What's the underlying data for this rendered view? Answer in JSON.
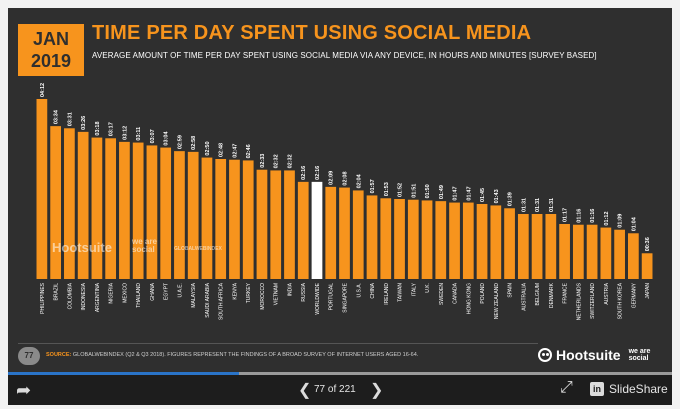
{
  "slide": {
    "badge_month": "JAN",
    "badge_year": "2019",
    "title": "TIME PER DAY SPENT USING SOCIAL MEDIA",
    "subtitle": "AVERAGE AMOUNT OF TIME PER DAY SPENT USING SOCIAL MEDIA VIA ANY DEVICE, IN HOURS AND MINUTES [SURVEY BASED]",
    "page_number": "77",
    "source_label": "SOURCE:",
    "source_text": "GLOBALWEBINDEX (Q2 & Q3 2018). FIGURES REPRESENT THE FINDINGS OF A BROAD SURVEY OF INTERNET USERS AGED 16-64.",
    "brand_hootsuite": "Hootsuite",
    "brand_wearesocial": "we are social",
    "watermark_hootsuite": "Hootsuite",
    "watermark_wearesocial": "we are social",
    "watermark_gwi": "GLOBALWEBINDEX"
  },
  "colors": {
    "background": "#2f2f2f",
    "accent": "#f7941d",
    "highlight_bar": "#ffffff"
  },
  "chart_data": {
    "type": "bar",
    "categories": [
      "PHILIPPINES",
      "BRAZIL",
      "COLOMBIA",
      "INDONESIA",
      "ARGENTINA",
      "NIGERIA",
      "MEXICO",
      "THAILAND",
      "GHANA",
      "EGYPT",
      "U.A.E.",
      "MALAYSIA",
      "SAUDI ARABIA",
      "SOUTH AFRICA",
      "KENYA",
      "TURKEY",
      "MOROCCO",
      "VIETNAM",
      "INDIA",
      "RUSSIA",
      "WORLDWIDE",
      "PORTUGAL",
      "SINGAPORE",
      "U.S.A.",
      "CHINA",
      "IRELAND",
      "TAIWAN",
      "ITALY",
      "U.K.",
      "SWEDEN",
      "CANADA",
      "HONG KONG",
      "POLAND",
      "NEW ZEALAND",
      "SPAIN",
      "AUSTRALIA",
      "BELGIUM",
      "DENMARK",
      "FRANCE",
      "NETHERLANDS",
      "SWITZERLAND",
      "AUSTRIA",
      "SOUTH KOREA",
      "GERMANY",
      "JAPAN"
    ],
    "labels": [
      "04:12",
      "03:34",
      "03:31",
      "03:26",
      "03:18",
      "03:17",
      "03:12",
      "03:11",
      "03:07",
      "03:04",
      "02:59",
      "02:58",
      "02:50",
      "02:48",
      "02:47",
      "02:46",
      "02:33",
      "02:32",
      "02:32",
      "02:16",
      "02:16",
      "02:09",
      "02:08",
      "02:04",
      "01:57",
      "01:53",
      "01:52",
      "01:51",
      "01:50",
      "01:49",
      "01:47",
      "01:47",
      "01:45",
      "01:43",
      "01:39",
      "01:31",
      "01:31",
      "01:31",
      "01:17",
      "01:16",
      "01:16",
      "01:12",
      "01:09",
      "01:04",
      "00:36"
    ],
    "values_minutes": [
      252,
      214,
      211,
      206,
      198,
      197,
      192,
      191,
      187,
      184,
      179,
      178,
      170,
      168,
      167,
      166,
      153,
      152,
      152,
      136,
      136,
      129,
      128,
      124,
      117,
      113,
      112,
      111,
      110,
      109,
      107,
      107,
      105,
      103,
      99,
      91,
      91,
      91,
      77,
      76,
      76,
      72,
      69,
      64,
      36
    ],
    "highlight_index": 20,
    "ylim": [
      0,
      252
    ]
  },
  "player": {
    "page_counter": "77 of 221",
    "progress_fraction": 0.348,
    "brand": "SlideShare",
    "linkedin_glyph": "in"
  },
  "icons": {
    "share": "share-icon",
    "prev": "prev-icon",
    "next": "next-icon",
    "fullscreen": "fullscreen-icon"
  }
}
